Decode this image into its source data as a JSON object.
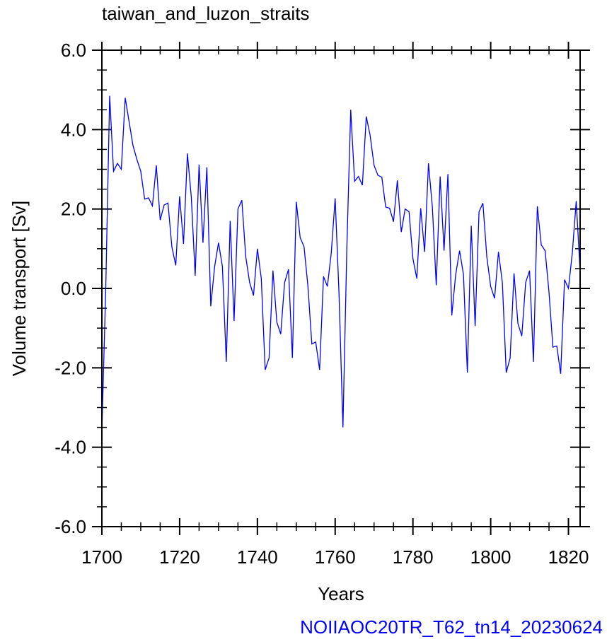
{
  "chart_data": {
    "type": "line",
    "title": "taiwan_and_luzon_straits",
    "xlabel": "Years",
    "ylabel": "Volume transport [Sv]",
    "xlim": [
      1700,
      1823
    ],
    "ylim": [
      -6.0,
      6.0
    ],
    "x_ticks": [
      1700,
      1720,
      1740,
      1760,
      1780,
      1800,
      1820
    ],
    "x_tick_labels": [
      "1700",
      "1720",
      "1740",
      "1760",
      "1780",
      "1800",
      "1820"
    ],
    "y_ticks": [
      -6.0,
      -4.0,
      -2.0,
      0.0,
      2.0,
      4.0,
      6.0
    ],
    "y_tick_labels": [
      "-6.0",
      "-4.0",
      "-2.0",
      "0.0",
      "2.0",
      "4.0",
      "6.0"
    ],
    "grid": false,
    "line_color": "#0000ff",
    "series": [
      {
        "x_start": 1700,
        "x_step": 1,
        "values": [
          -3.6,
          0.0,
          4.85,
          2.95,
          3.15,
          3.0,
          4.8,
          4.2,
          3.6,
          3.25,
          2.95,
          2.25,
          2.28,
          2.08,
          3.1,
          1.72,
          2.1,
          2.15,
          1.05,
          0.58,
          2.32,
          1.12,
          3.4,
          2.3,
          0.32,
          3.12,
          1.15,
          3.05,
          -0.45,
          0.55,
          1.15,
          0.55,
          -1.85,
          1.7,
          -0.82,
          2.0,
          2.22,
          0.8,
          0.15,
          -0.18,
          1.0,
          0.25,
          -2.05,
          -1.75,
          0.45,
          -0.85,
          -1.15,
          0.15,
          0.48,
          -1.75,
          2.18,
          1.28,
          1.05,
          0.05,
          -1.4,
          -1.35,
          -2.05,
          0.3,
          0.05,
          0.9,
          2.27,
          -0.15,
          -3.5,
          1.0,
          4.5,
          2.7,
          2.82,
          2.6,
          4.33,
          3.85,
          3.1,
          2.85,
          2.8,
          2.05,
          2.02,
          1.68,
          2.72,
          1.42,
          2.0,
          1.93,
          0.75,
          0.25,
          2.02,
          0.92,
          3.15,
          2.05,
          0.08,
          2.82,
          0.95,
          2.88,
          -0.68,
          0.35,
          0.95,
          0.35,
          -2.12,
          1.58,
          -0.95,
          1.93,
          2.15,
          0.8,
          0.05,
          -0.25,
          0.92,
          0.15,
          -2.12,
          -1.75,
          0.38,
          -0.88,
          -1.2,
          0.15,
          0.45,
          -1.85,
          2.07,
          1.1,
          0.95,
          -0.1,
          -1.48,
          -1.45,
          -2.15,
          0.22,
          0.0,
          0.9,
          2.2,
          0.42
        ]
      }
    ]
  },
  "footer": {
    "credit": "NOIIAOC20TR_T62_tn14_20230624",
    "credit_color": "#0000ff"
  }
}
